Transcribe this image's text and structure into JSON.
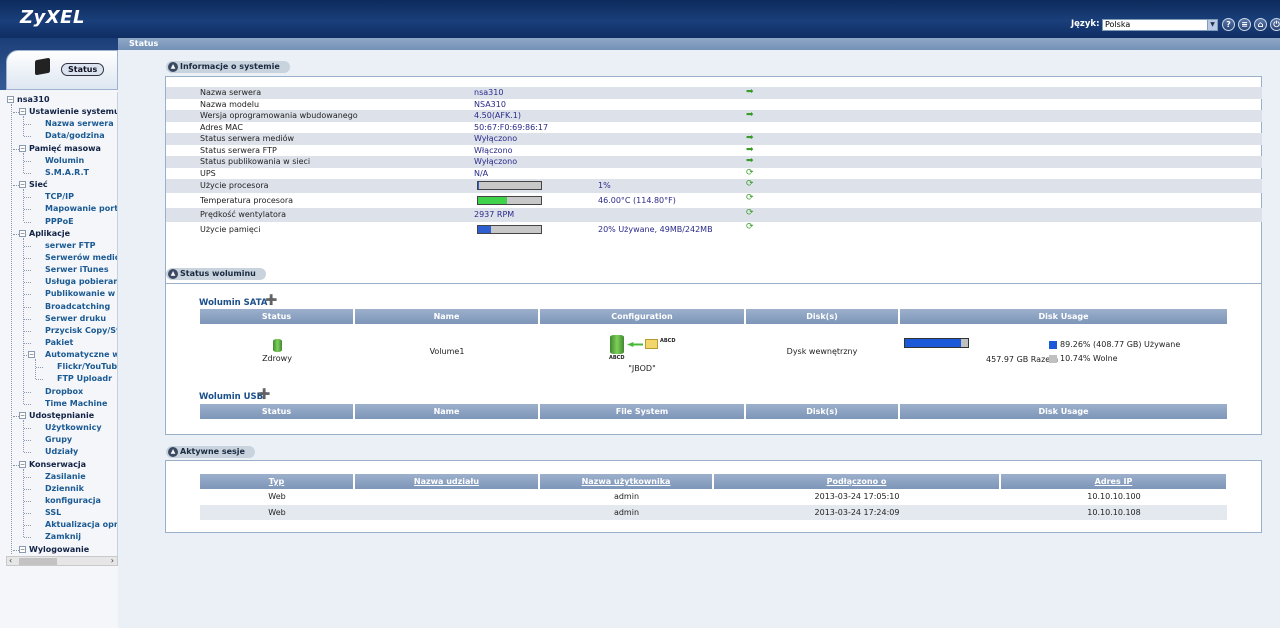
{
  "header": {
    "logo": "ZyXEL",
    "language_label": "Język:",
    "language_value": "Polska",
    "icons": [
      "help-icon",
      "about-icon",
      "sitemap-icon",
      "home-icon",
      "logout-icon"
    ]
  },
  "sidebar": {
    "status_tab": "Status",
    "tree": [
      {
        "label": "nsa310",
        "level": 0
      },
      {
        "label": "Ustawienie systemu",
        "level": 1
      },
      {
        "label": "Nazwa serwera",
        "level": 2
      },
      {
        "label": "Data/godzina",
        "level": 2
      },
      {
        "label": "Pamięć masowa",
        "level": 1
      },
      {
        "label": "Wolumin",
        "level": 2
      },
      {
        "label": "S.M.A.R.T",
        "level": 2
      },
      {
        "label": "Sieć",
        "level": 1
      },
      {
        "label": "TCP/IP",
        "level": 2
      },
      {
        "label": "Mapowanie portów",
        "level": 2
      },
      {
        "label": "PPPoE",
        "level": 2
      },
      {
        "label": "Aplikacje",
        "level": 1
      },
      {
        "label": "serwer FTP",
        "level": 2
      },
      {
        "label": "Serwerów mediów",
        "level": 2
      },
      {
        "label": "Serwer iTunes",
        "level": 2
      },
      {
        "label": "Usługa pobierania",
        "level": 2
      },
      {
        "label": "Publikowanie w sieci",
        "level": 2
      },
      {
        "label": "Broadcatching",
        "level": 2
      },
      {
        "label": "Serwer druku",
        "level": 2
      },
      {
        "label": "Przycisk Copy/Sync",
        "level": 2
      },
      {
        "label": "Pakiet",
        "level": 2
      },
      {
        "label": "Automatyczne wysyłanie",
        "level": 2
      },
      {
        "label": "Flickr/YouTube",
        "level": 3
      },
      {
        "label": "FTP Uploadr",
        "level": 3
      },
      {
        "label": "Dropbox",
        "level": 2
      },
      {
        "label": "Time Machine",
        "level": 2
      },
      {
        "label": "Udostępnianie",
        "level": 1
      },
      {
        "label": "Użytkownicy",
        "level": 2
      },
      {
        "label": "Grupy",
        "level": 2
      },
      {
        "label": "Udziały",
        "level": 2
      },
      {
        "label": "Konserwacja",
        "level": 1
      },
      {
        "label": "Zasilanie",
        "level": 2
      },
      {
        "label": "Dziennik",
        "level": 2
      },
      {
        "label": "konfiguracja",
        "level": 2
      },
      {
        "label": "SSL",
        "level": 2
      },
      {
        "label": "Aktualizacja oprogramowania",
        "level": 2
      },
      {
        "label": "Zamknij",
        "level": 2
      },
      {
        "label": "Wylogowanie",
        "level": 1
      }
    ]
  },
  "breadcrumb": "Status",
  "system_info": {
    "title": "Informacje o systemie",
    "rows": [
      {
        "key": "Nazwa serwera",
        "value": "nsa310",
        "action": "edit"
      },
      {
        "key": "Nazwa modelu",
        "value": "NSA310",
        "action": ""
      },
      {
        "key": "Wersja oprogramowania wbudowanego",
        "value": "4.50(AFK.1)",
        "action": "edit"
      },
      {
        "key": "Adres MAC",
        "value": "50:67:F0:69:86:17",
        "action": ""
      },
      {
        "key": "Status serwera mediów",
        "value": "Wyłączono",
        "action": "edit"
      },
      {
        "key": "Status serwera FTP",
        "value": "Włączono",
        "action": "edit"
      },
      {
        "key": "Status publikowania w sieci",
        "value": "Wyłączono",
        "action": "edit"
      },
      {
        "key": "UPS",
        "value": "N/A",
        "action": "refresh"
      },
      {
        "key": "Użycie procesora",
        "bar": 0.01,
        "bar_color": "#2d5fd0",
        "value2": "1%",
        "action": "refresh"
      },
      {
        "key": "Temperatura procesora",
        "bar": 0.46,
        "bar_color": "#3fd24a",
        "value2": "46.00°C (114.80°F)",
        "action": "refresh"
      },
      {
        "key": "Prędkość wentylatora",
        "value": "2937 RPM",
        "action": "refresh"
      },
      {
        "key": "Użycie pamięci",
        "bar": 0.2,
        "bar_color": "#2d5fd0",
        "value2": "20% Używane, 49MB/242MB",
        "action": "refresh"
      }
    ]
  },
  "volume_status": {
    "title": "Status woluminu",
    "sata_title": "Wolumin SATA",
    "usb_title": "Wolumin USB",
    "columns": [
      "Status",
      "Name",
      "Configuration",
      "Disk(s)",
      "Disk Usage"
    ],
    "usb_columns": [
      "Status",
      "Name",
      "File System",
      "Disk(s)",
      "Disk Usage"
    ],
    "sata": {
      "status": "Zdrowy",
      "name": "Volume1",
      "config": "\"JBOD\"",
      "config_tag_a": "ABCD",
      "config_tag_b": "ABCD",
      "disks": "Dysk wewnętrzny",
      "usage_fraction": 0.8926,
      "total": "457.97 GB Razem",
      "used": "89.26% (408.77 GB) Używane",
      "free": "10.74% Wolne",
      "used_color": "#1a5ad8",
      "free_color": "#c0c0c0"
    }
  },
  "sessions": {
    "title": "Aktywne sesje",
    "columns": [
      "Typ",
      "Nazwa udziału",
      "Nazwa użytkownika",
      "Podłączono o",
      "Adres IP"
    ],
    "rows": [
      [
        "Web",
        "",
        "admin",
        "2013-03-24 17:05:10",
        "10.10.10.100"
      ],
      [
        "Web",
        "",
        "admin",
        "2013-03-24 17:24:09",
        "10.10.10.108"
      ]
    ]
  }
}
